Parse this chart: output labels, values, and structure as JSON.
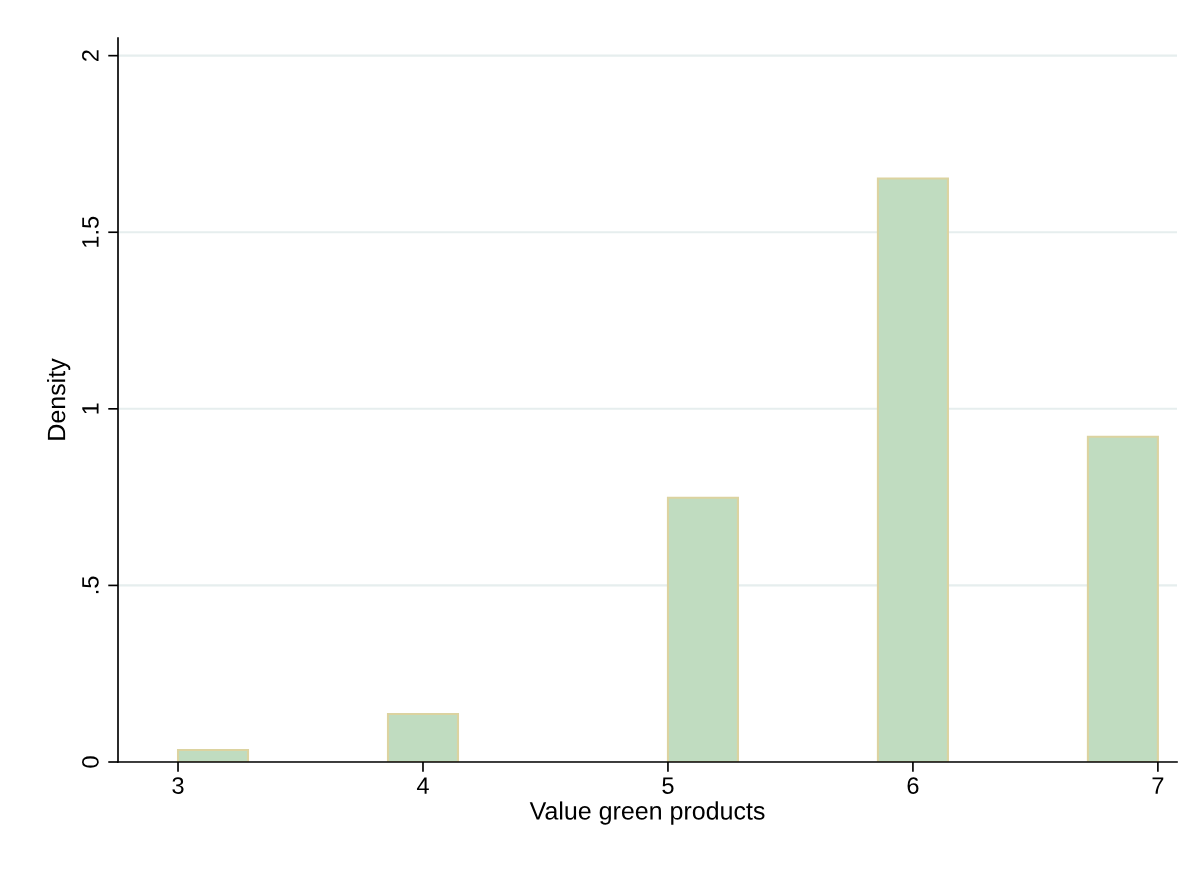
{
  "chart_data": {
    "type": "histogram",
    "xlabel": "Value green products",
    "ylabel": "Density",
    "bins": [
      3,
      3.2857,
      3.5714,
      3.8571,
      4.1429,
      4.4286,
      4.7143,
      5,
      5.2857,
      5.5714,
      5.8571,
      6.1429,
      6.4286,
      6.7143,
      7
    ],
    "values": [
      0.034,
      0,
      0,
      0.136,
      0,
      0,
      0,
      0.748,
      0,
      0,
      1.652,
      0,
      0,
      0.921
    ],
    "color": "#c0dcc0",
    "xlim": [
      2.755,
      7.078
    ],
    "xticks": [
      3,
      4,
      5,
      6,
      7
    ],
    "ylim": [
      0,
      2.05
    ],
    "yticks": [
      0,
      {
        "value": 0.5,
        "label": ".5"
      },
      1,
      1.5,
      2
    ],
    "grid": "y"
  }
}
